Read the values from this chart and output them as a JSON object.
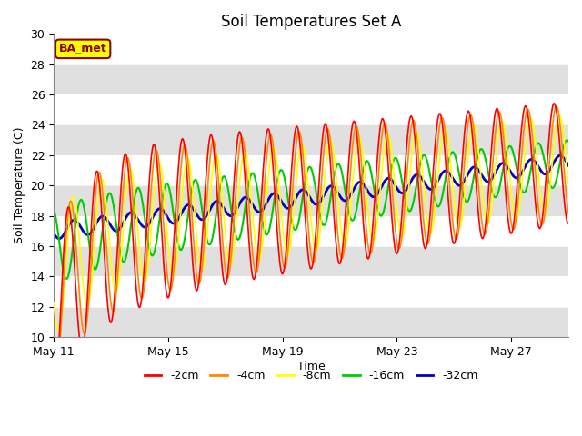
{
  "title": "Soil Temperatures Set A",
  "xlabel": "Time",
  "ylabel": "Soil Temperature (C)",
  "ylim": [
    10,
    30
  ],
  "xlim_days": [
    0,
    18
  ],
  "background_color": "#ffffff",
  "plot_bg_color": "#e0e0e0",
  "annotation_text": "BA_met",
  "annotation_bg": "#ffff00",
  "annotation_border": "#8b0000",
  "colors": {
    "-2cm": "#ff0000",
    "-4cm": "#ff8800",
    "-8cm": "#ffff00",
    "-16cm": "#00cc00",
    "-32cm": "#0000cc"
  },
  "legend_labels": [
    "-2cm",
    "-4cm",
    "-8cm",
    "-16cm",
    "-32cm"
  ],
  "x_tick_labels": [
    "May 11",
    "May 15",
    "May 19",
    "May 23",
    "May 27"
  ],
  "x_tick_positions": [
    0,
    4,
    8,
    12,
    16
  ]
}
